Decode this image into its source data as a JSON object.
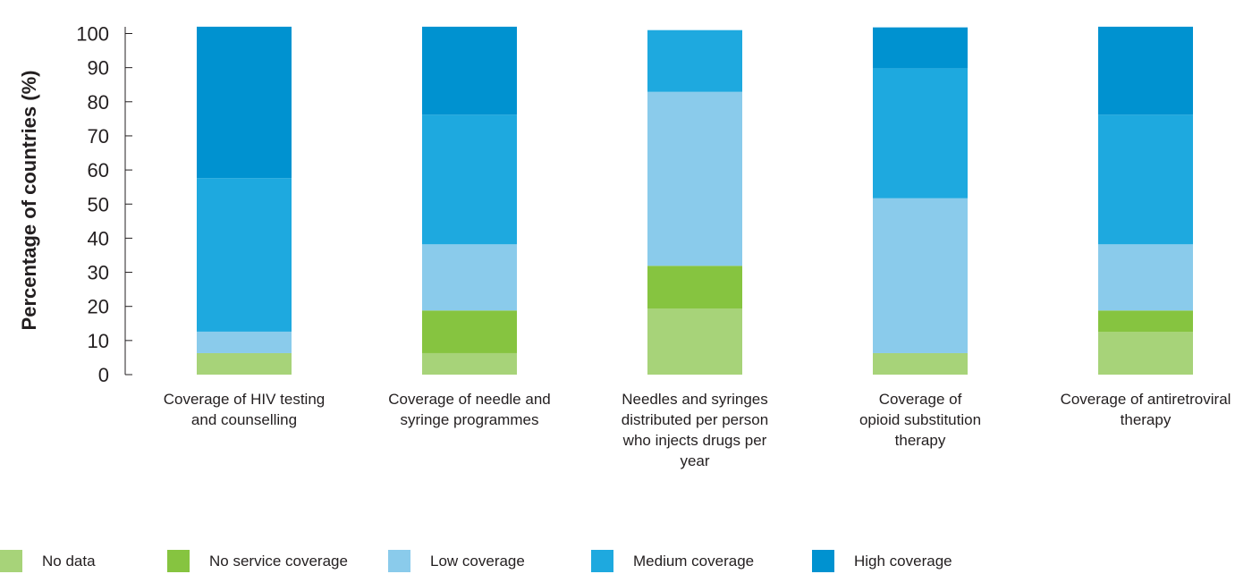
{
  "chart_data": {
    "type": "bar",
    "stacked": true,
    "ylabel": "Percentage of countries (%)",
    "xlabel": "",
    "ylim": [
      0,
      102
    ],
    "yticks": [
      "0",
      "10",
      "20",
      "30",
      "40",
      "50",
      "60",
      "70",
      "80",
      "90",
      "100"
    ],
    "grid": false,
    "legend_position": "bottom",
    "categories": [
      [
        "Coverage of HIV testing",
        "and counselling"
      ],
      [
        "Coverage of needle and",
        "syringe programmes"
      ],
      [
        "Needles and syringes",
        "distributed per person",
        "who injects drugs per",
        "year"
      ],
      [
        "Coverage of",
        "opioid substitution",
        "therapy"
      ],
      [
        "Coverage of antiretroviral",
        "therapy"
      ]
    ],
    "series": [
      {
        "name": "No data",
        "color": "#a7d379",
        "values": [
          6.3,
          6.3,
          19.4,
          6.3,
          12.5
        ]
      },
      {
        "name": "No service coverage",
        "color": "#86c440",
        "values": [
          0,
          12.5,
          12.5,
          0,
          6.3
        ]
      },
      {
        "name": "Low coverage",
        "color": "#8acbeb",
        "values": [
          6.3,
          19.4,
          51.0,
          45.4,
          19.4
        ]
      },
      {
        "name": "Medium coverage",
        "color": "#1ea9df",
        "values": [
          45.0,
          38.0,
          18.1,
          38.1,
          38.0
        ]
      },
      {
        "name": "High coverage",
        "color": "#0092d0",
        "values": [
          44.4,
          25.8,
          0,
          12.0,
          25.8
        ]
      }
    ]
  }
}
